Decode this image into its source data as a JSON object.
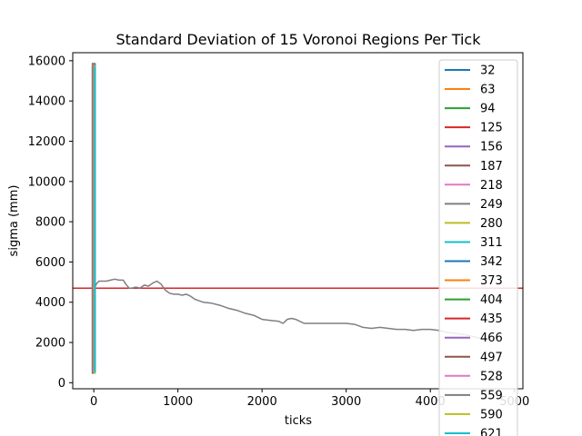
{
  "chart_data": {
    "type": "line",
    "title": "Standard Deviation of 15 Voronoi Regions Per Tick",
    "xlabel": "ticks",
    "ylabel": "sigma (mm)",
    "xlim": [
      -250,
      5100
    ],
    "ylim": [
      -300,
      16400
    ],
    "xticks": [
      "0",
      "1000",
      "2000",
      "3000",
      "4000",
      "5000"
    ],
    "xtick_values": [
      0,
      1000,
      2000,
      3000,
      4000,
      5000
    ],
    "yticks": [
      "0",
      "2000",
      "4000",
      "6000",
      "8000",
      "10000",
      "12000",
      "14000",
      "16000"
    ],
    "ytick_values": [
      0,
      2000,
      4000,
      6000,
      8000,
      10000,
      12000,
      14000,
      16000
    ],
    "grid": false,
    "legend_position": "right",
    "reference_line": {
      "y": 4700,
      "color": "#d62728"
    },
    "spike": {
      "x": 0,
      "ymin": 450,
      "ymax": 15900
    },
    "series": [
      {
        "name": "32",
        "color": "#1f77b4"
      },
      {
        "name": "63",
        "color": "#ff7f0e"
      },
      {
        "name": "94",
        "color": "#2ca02c"
      },
      {
        "name": "125",
        "color": "#d62728"
      },
      {
        "name": "156",
        "color": "#9467bd"
      },
      {
        "name": "187",
        "color": "#8c564b"
      },
      {
        "name": "218",
        "color": "#e377c2"
      },
      {
        "name": "249",
        "color": "#7f7f7f",
        "x": [
          0,
          30,
          60,
          100,
          150,
          200,
          250,
          300,
          350,
          380,
          420,
          450,
          500,
          550,
          600,
          650,
          700,
          750,
          800,
          850,
          900,
          950,
          1000,
          1050,
          1100,
          1150,
          1200,
          1300,
          1400,
          1500,
          1600,
          1700,
          1800,
          1900,
          2000,
          2100,
          2200,
          2250,
          2300,
          2350,
          2400,
          2500,
          2600,
          2700,
          2800,
          2900,
          3000,
          3100,
          3200,
          3300,
          3400,
          3500,
          3600,
          3700,
          3800,
          3900,
          4000,
          4100,
          4200,
          4300,
          4400,
          4500,
          4600,
          4700,
          4750
        ],
        "y": [
          4600,
          4900,
          5050,
          5050,
          5050,
          5100,
          5150,
          5100,
          5100,
          4900,
          4700,
          4700,
          4750,
          4700,
          4850,
          4800,
          4950,
          5050,
          4900,
          4600,
          4450,
          4400,
          4400,
          4350,
          4400,
          4300,
          4150,
          4000,
          3950,
          3850,
          3700,
          3600,
          3450,
          3350,
          3150,
          3100,
          3050,
          2950,
          3150,
          3200,
          3150,
          2950,
          2950,
          2950,
          2950,
          2950,
          2950,
          2900,
          2750,
          2700,
          2750,
          2700,
          2650,
          2650,
          2600,
          2650,
          2650,
          2600,
          2500,
          2450,
          2400,
          2300,
          2200,
          2150,
          2100
        ]
      },
      {
        "name": "280",
        "color": "#bcbd22"
      },
      {
        "name": "311",
        "color": "#17becf"
      },
      {
        "name": "342",
        "color": "#1f77b4"
      },
      {
        "name": "373",
        "color": "#ff7f0e"
      },
      {
        "name": "404",
        "color": "#2ca02c"
      },
      {
        "name": "435",
        "color": "#d62728"
      },
      {
        "name": "466",
        "color": "#9467bd"
      },
      {
        "name": "497",
        "color": "#8c564b"
      },
      {
        "name": "528",
        "color": "#e377c2"
      },
      {
        "name": "559",
        "color": "#7f7f7f"
      },
      {
        "name": "590",
        "color": "#bcbd22"
      },
      {
        "name": "621",
        "color": "#17becf"
      }
    ]
  }
}
